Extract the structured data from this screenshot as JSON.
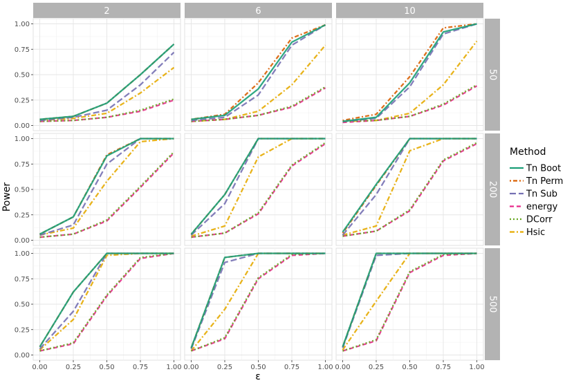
{
  "chart_data": {
    "type": "line",
    "ylabel": "Power",
    "xlabel": "ε",
    "xlim": [
      0,
      1
    ],
    "ylim": [
      0,
      1
    ],
    "x_ticks": [
      "0.00",
      "0.25",
      "0.50",
      "0.75",
      "1.00"
    ],
    "y_ticks": [
      "0.00",
      "0.25",
      "0.50",
      "0.75",
      "1.00"
    ],
    "grid": true,
    "column_facets": [
      "2",
      "6",
      "10"
    ],
    "row_facets": [
      "50",
      "200",
      "500"
    ],
    "x": [
      0,
      0.25,
      0.5,
      0.75,
      1.0
    ],
    "legend": {
      "title": "Method",
      "position": "right",
      "entries": [
        {
          "name": "Tn Boot",
          "color": "#1b9e77",
          "dash": "solid"
        },
        {
          "name": "Tn Perm",
          "color": "#d95f02",
          "dash": "dotted-dash"
        },
        {
          "name": "Tn Sub",
          "color": "#7570b3",
          "dash": "long-dash"
        },
        {
          "name": "energy",
          "color": "#e7298a",
          "dash": "dash"
        },
        {
          "name": "DCorr",
          "color": "#66a61e",
          "dash": "dotted"
        },
        {
          "name": "Hsic",
          "color": "#e6ab02",
          "dash": "dot-dash"
        }
      ]
    },
    "panels": [
      {
        "col": "2",
        "row": "50",
        "series": {
          "Tn Boot": [
            0.06,
            0.09,
            0.22,
            0.5,
            0.8
          ],
          "Tn Perm": [
            0.06,
            0.09,
            0.22,
            0.5,
            0.8
          ],
          "Tn Sub": [
            0.05,
            0.08,
            0.15,
            0.4,
            0.72
          ],
          "energy": [
            0.04,
            0.05,
            0.08,
            0.14,
            0.25
          ],
          "DCorr": [
            0.04,
            0.05,
            0.08,
            0.15,
            0.26
          ],
          "Hsic": [
            0.05,
            0.07,
            0.12,
            0.32,
            0.57
          ]
        }
      },
      {
        "col": "6",
        "row": "50",
        "series": {
          "Tn Boot": [
            0.06,
            0.1,
            0.36,
            0.82,
            0.99
          ],
          "Tn Perm": [
            0.06,
            0.11,
            0.42,
            0.86,
            0.99
          ],
          "Tn Sub": [
            0.05,
            0.08,
            0.3,
            0.79,
            0.99
          ],
          "energy": [
            0.04,
            0.06,
            0.1,
            0.18,
            0.37
          ],
          "DCorr": [
            0.04,
            0.06,
            0.1,
            0.19,
            0.38
          ],
          "Hsic": [
            0.04,
            0.06,
            0.14,
            0.4,
            0.79
          ]
        }
      },
      {
        "col": "10",
        "row": "50",
        "series": {
          "Tn Boot": [
            0.04,
            0.08,
            0.42,
            0.92,
            1.0
          ],
          "Tn Perm": [
            0.05,
            0.11,
            0.48,
            0.96,
            1.0
          ],
          "Tn Sub": [
            0.04,
            0.07,
            0.38,
            0.9,
            1.0
          ],
          "energy": [
            0.03,
            0.05,
            0.09,
            0.2,
            0.39
          ],
          "DCorr": [
            0.04,
            0.05,
            0.09,
            0.21,
            0.4
          ],
          "Hsic": [
            0.04,
            0.05,
            0.12,
            0.4,
            0.83
          ]
        }
      },
      {
        "col": "2",
        "row": "200",
        "series": {
          "Tn Boot": [
            0.06,
            0.23,
            0.83,
            1.0,
            1.0
          ],
          "Tn Perm": [
            0.06,
            0.23,
            0.84,
            1.0,
            1.0
          ],
          "Tn Sub": [
            0.05,
            0.15,
            0.75,
            1.0,
            1.0
          ],
          "energy": [
            0.03,
            0.06,
            0.19,
            0.52,
            0.86
          ],
          "DCorr": [
            0.03,
            0.06,
            0.2,
            0.53,
            0.87
          ],
          "Hsic": [
            0.05,
            0.12,
            0.58,
            0.97,
            1.0
          ]
        }
      },
      {
        "col": "6",
        "row": "200",
        "series": {
          "Tn Boot": [
            0.06,
            0.45,
            1.0,
            1.0,
            1.0
          ],
          "Tn Perm": [
            0.06,
            0.45,
            1.0,
            1.0,
            1.0
          ],
          "Tn Sub": [
            0.05,
            0.36,
            1.0,
            1.0,
            1.0
          ],
          "energy": [
            0.03,
            0.07,
            0.26,
            0.73,
            0.95
          ],
          "DCorr": [
            0.03,
            0.07,
            0.27,
            0.74,
            0.96
          ],
          "Hsic": [
            0.04,
            0.14,
            0.82,
            1.0,
            1.0
          ]
        }
      },
      {
        "col": "10",
        "row": "200",
        "series": {
          "Tn Boot": [
            0.08,
            0.55,
            1.0,
            1.0,
            1.0
          ],
          "Tn Perm": [
            0.07,
            0.54,
            1.0,
            1.0,
            1.0
          ],
          "Tn Sub": [
            0.05,
            0.45,
            1.0,
            1.0,
            1.0
          ],
          "energy": [
            0.04,
            0.09,
            0.29,
            0.78,
            0.95
          ],
          "DCorr": [
            0.04,
            0.09,
            0.3,
            0.79,
            0.96
          ],
          "Hsic": [
            0.05,
            0.14,
            0.88,
            1.0,
            1.0
          ]
        }
      },
      {
        "col": "2",
        "row": "500",
        "series": {
          "Tn Boot": [
            0.08,
            0.62,
            1.0,
            1.0,
            1.0
          ],
          "Tn Perm": [
            0.08,
            0.62,
            1.0,
            1.0,
            1.0
          ],
          "Tn Sub": [
            0.06,
            0.43,
            1.0,
            1.0,
            1.0
          ],
          "energy": [
            0.04,
            0.11,
            0.58,
            0.95,
            1.0
          ],
          "DCorr": [
            0.04,
            0.12,
            0.59,
            0.96,
            1.0
          ],
          "Hsic": [
            0.05,
            0.35,
            0.98,
            1.0,
            1.0
          ]
        }
      },
      {
        "col": "6",
        "row": "500",
        "series": {
          "Tn Boot": [
            0.07,
            0.96,
            1.0,
            1.0,
            1.0
          ],
          "Tn Perm": [
            0.07,
            0.96,
            1.0,
            1.0,
            1.0
          ],
          "Tn Sub": [
            0.06,
            0.91,
            1.0,
            1.0,
            1.0
          ],
          "energy": [
            0.04,
            0.16,
            0.75,
            0.98,
            1.0
          ],
          "DCorr": [
            0.04,
            0.17,
            0.76,
            0.99,
            1.0
          ],
          "Hsic": [
            0.04,
            0.45,
            1.0,
            1.0,
            1.0
          ]
        }
      },
      {
        "col": "10",
        "row": "500",
        "series": {
          "Tn Boot": [
            0.08,
            1.0,
            1.0,
            1.0,
            1.0
          ],
          "Tn Perm": [
            0.08,
            1.0,
            1.0,
            1.0,
            1.0
          ],
          "Tn Sub": [
            0.07,
            0.98,
            1.0,
            1.0,
            1.0
          ],
          "energy": [
            0.04,
            0.14,
            0.81,
            0.98,
            1.0
          ],
          "DCorr": [
            0.04,
            0.15,
            0.82,
            0.99,
            1.0
          ],
          "Hsic": [
            0.05,
            0.53,
            1.0,
            1.0,
            1.0
          ]
        }
      }
    ]
  }
}
